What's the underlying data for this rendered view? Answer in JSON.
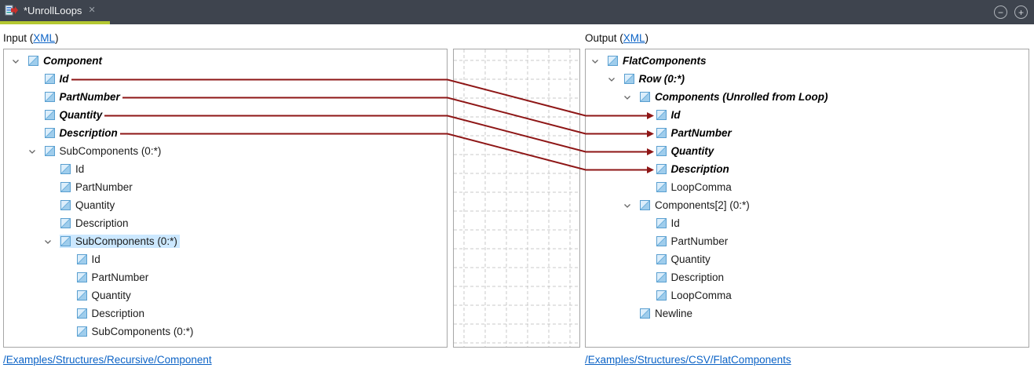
{
  "tab_bar": {
    "title": "*UnrollLoops",
    "close_symbol": "✕",
    "accent_color": "#b4c832",
    "zoom_out_symbol": "−",
    "zoom_in_symbol": "+"
  },
  "input_panel": {
    "header_prefix": "Input (",
    "header_link": "XML",
    "header_suffix": ")",
    "footer_link": "/Examples/Structures/Recursive/Component",
    "tree": [
      {
        "label": "Component",
        "depth": 0,
        "bold": true,
        "expander": true,
        "selected": false
      },
      {
        "label": "Id",
        "depth": 1,
        "bold": true,
        "expander": false,
        "selected": false
      },
      {
        "label": "PartNumber",
        "depth": 1,
        "bold": true,
        "expander": false,
        "selected": false
      },
      {
        "label": "Quantity",
        "depth": 1,
        "bold": true,
        "expander": false,
        "selected": false
      },
      {
        "label": "Description",
        "depth": 1,
        "bold": true,
        "expander": false,
        "selected": false
      },
      {
        "label": "SubComponents (0:*)",
        "depth": 1,
        "bold": false,
        "expander": true,
        "selected": false
      },
      {
        "label": "Id",
        "depth": 2,
        "bold": false,
        "expander": false,
        "selected": false
      },
      {
        "label": "PartNumber",
        "depth": 2,
        "bold": false,
        "expander": false,
        "selected": false
      },
      {
        "label": "Quantity",
        "depth": 2,
        "bold": false,
        "expander": false,
        "selected": false
      },
      {
        "label": "Description",
        "depth": 2,
        "bold": false,
        "expander": false,
        "selected": false
      },
      {
        "label": "SubComponents (0:*)",
        "depth": 2,
        "bold": false,
        "expander": true,
        "selected": true
      },
      {
        "label": "Id",
        "depth": 3,
        "bold": false,
        "expander": false,
        "selected": false
      },
      {
        "label": "PartNumber",
        "depth": 3,
        "bold": false,
        "expander": false,
        "selected": false
      },
      {
        "label": "Quantity",
        "depth": 3,
        "bold": false,
        "expander": false,
        "selected": false
      },
      {
        "label": "Description",
        "depth": 3,
        "bold": false,
        "expander": false,
        "selected": false
      },
      {
        "label": "SubComponents (0:*)",
        "depth": 3,
        "bold": false,
        "expander": false,
        "selected": false
      }
    ]
  },
  "output_panel": {
    "header_prefix": "Output (",
    "header_link": "XML",
    "header_suffix": ")",
    "footer_link": "/Examples/Structures/CSV/FlatComponents",
    "tree": [
      {
        "label": "FlatComponents",
        "depth": 0,
        "bold": true,
        "expander": true,
        "selected": false
      },
      {
        "label": "Row (0:*)",
        "depth": 1,
        "bold": true,
        "expander": true,
        "selected": false
      },
      {
        "label": "Components (Unrolled from Loop)",
        "depth": 2,
        "bold": true,
        "expander": true,
        "selected": false
      },
      {
        "label": "Id",
        "depth": 3,
        "bold": true,
        "expander": false,
        "selected": false
      },
      {
        "label": "PartNumber",
        "depth": 3,
        "bold": true,
        "expander": false,
        "selected": false
      },
      {
        "label": "Quantity",
        "depth": 3,
        "bold": true,
        "expander": false,
        "selected": false
      },
      {
        "label": "Description",
        "depth": 3,
        "bold": true,
        "expander": false,
        "selected": false
      },
      {
        "label": "LoopComma",
        "depth": 3,
        "bold": false,
        "expander": false,
        "selected": false
      },
      {
        "label": "Components[2] (0:*)",
        "depth": 2,
        "bold": false,
        "expander": true,
        "selected": false
      },
      {
        "label": "Id",
        "depth": 3,
        "bold": false,
        "expander": false,
        "selected": false
      },
      {
        "label": "PartNumber",
        "depth": 3,
        "bold": false,
        "expander": false,
        "selected": false
      },
      {
        "label": "Quantity",
        "depth": 3,
        "bold": false,
        "expander": false,
        "selected": false
      },
      {
        "label": "Description",
        "depth": 3,
        "bold": false,
        "expander": false,
        "selected": false
      },
      {
        "label": "LoopComma",
        "depth": 3,
        "bold": false,
        "expander": false,
        "selected": false
      },
      {
        "label": "Newline",
        "depth": 2,
        "bold": false,
        "expander": false,
        "selected": false
      }
    ]
  },
  "mapping": {
    "line_color": "#8e1616",
    "connections": [
      {
        "from_row": 1,
        "to_row": 3
      },
      {
        "from_row": 2,
        "to_row": 4
      },
      {
        "from_row": 3,
        "to_row": 5
      },
      {
        "from_row": 4,
        "to_row": 6
      }
    ]
  }
}
